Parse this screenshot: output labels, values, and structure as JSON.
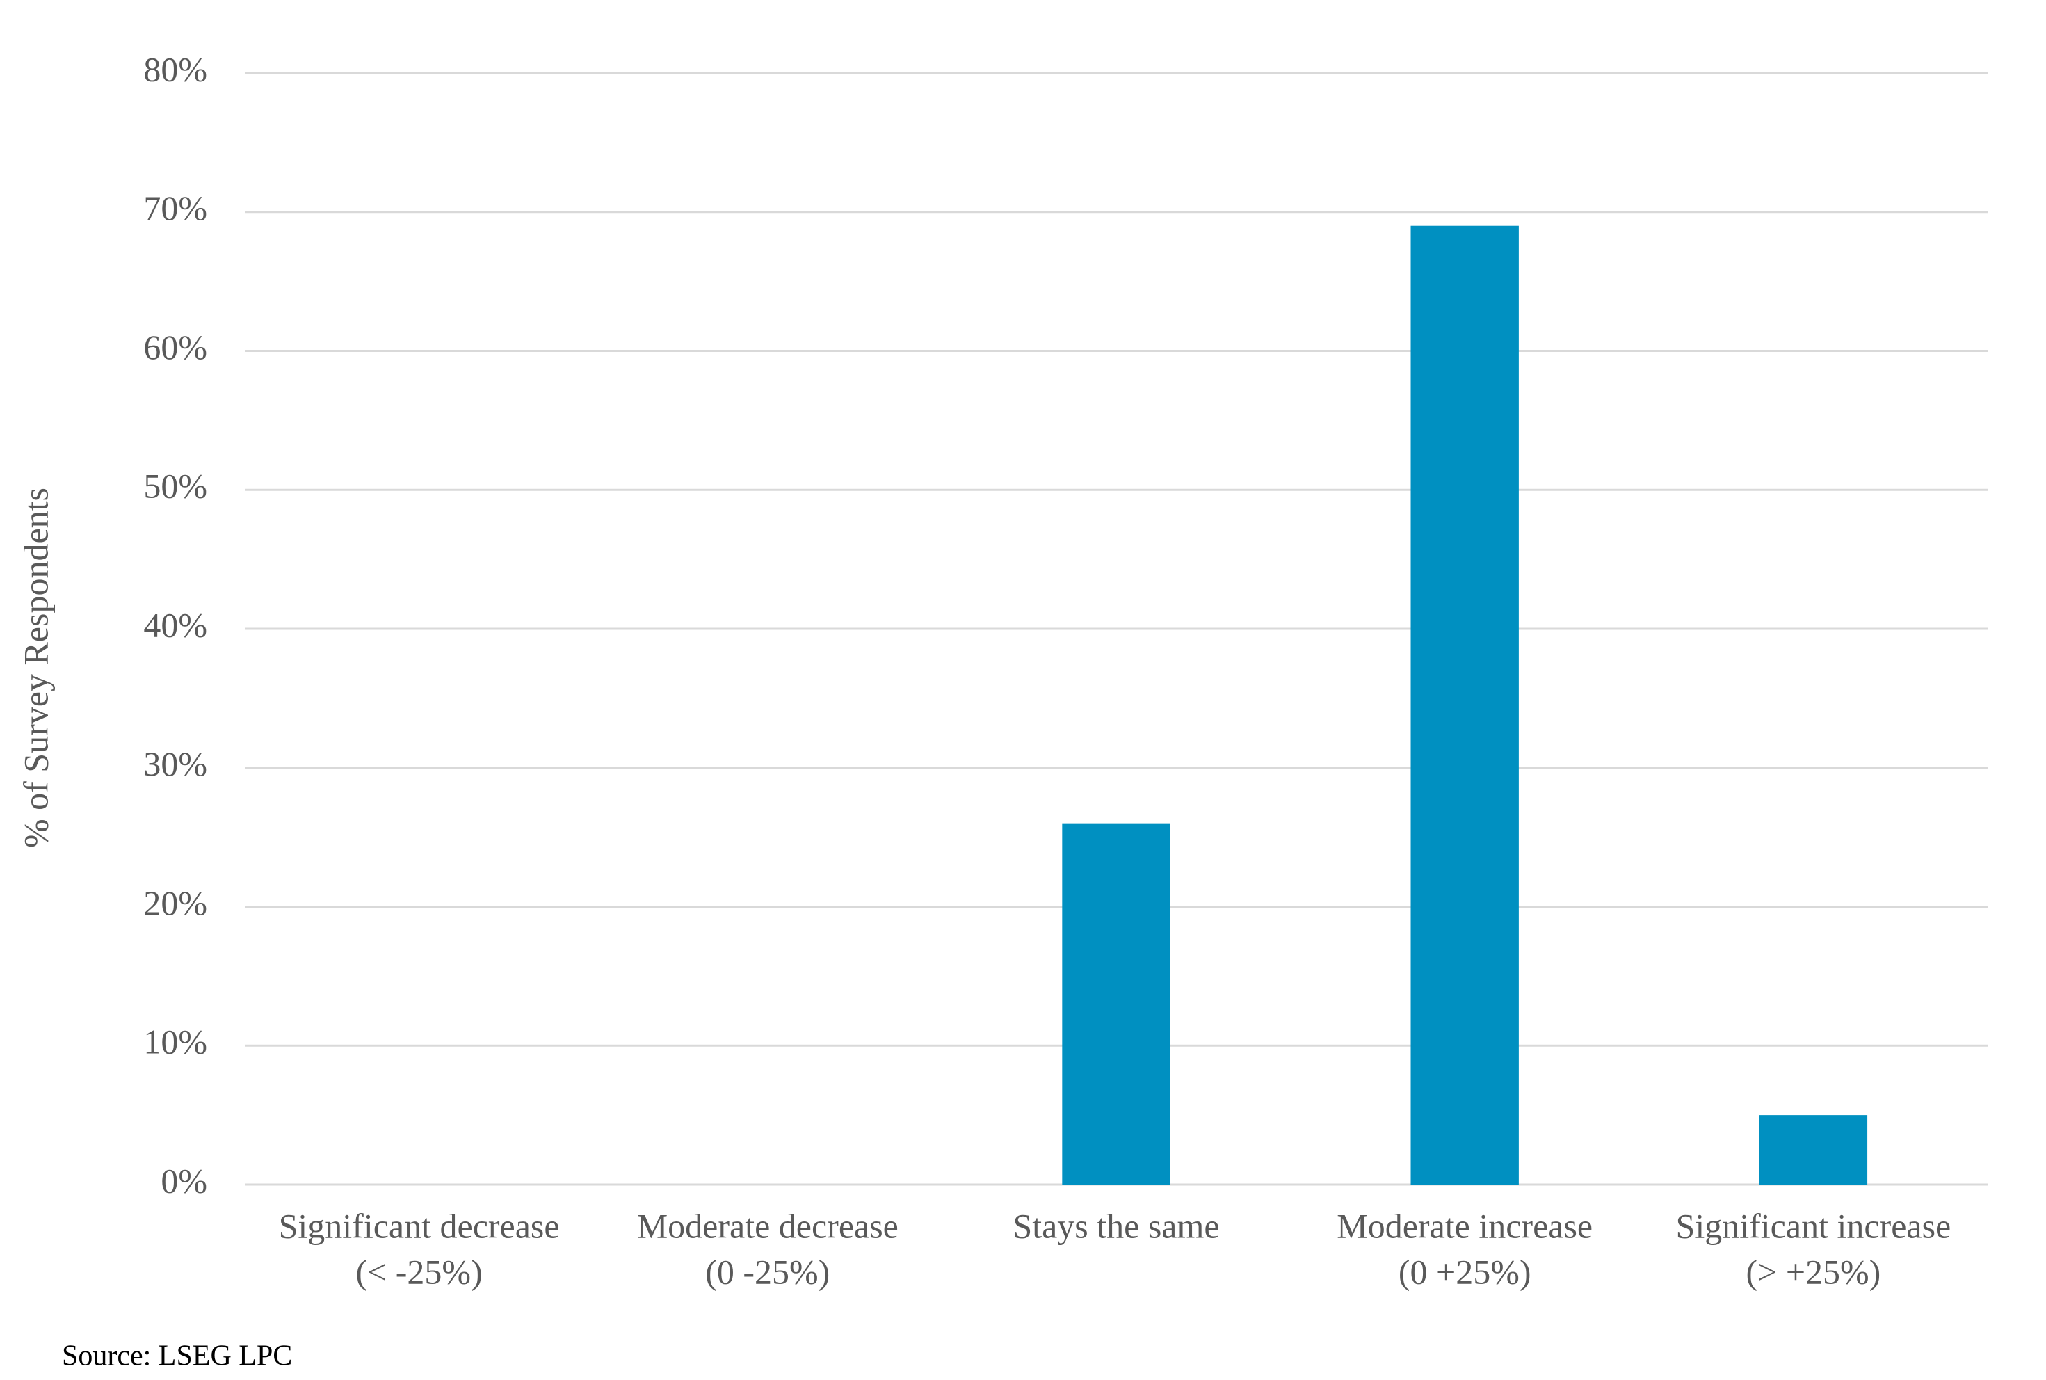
{
  "chart_data": {
    "type": "bar",
    "y_label": "% of Survey Respondents",
    "categories": [
      [
        "Significant decrease",
        "(< -25%)"
      ],
      [
        "Moderate decrease",
        "(0 -25%)"
      ],
      [
        "Stays the same"
      ],
      [
        "Moderate increase",
        "(0 +25%)"
      ],
      [
        "Significant increase",
        "(> +25%)"
      ]
    ],
    "values": [
      0,
      0,
      26,
      69,
      5
    ],
    "color": "#0090c1",
    "ylim": [
      0,
      80
    ],
    "yticks": [
      {
        "value": 0,
        "label": "0%"
      },
      {
        "value": 10,
        "label": "10%"
      },
      {
        "value": 20,
        "label": "20%"
      },
      {
        "value": 30,
        "label": "30%"
      },
      {
        "value": 40,
        "label": "40%"
      },
      {
        "value": 50,
        "label": "50%"
      },
      {
        "value": 60,
        "label": "60%"
      },
      {
        "value": 70,
        "label": "70%"
      },
      {
        "value": 80,
        "label": "80%"
      }
    ],
    "grid": true,
    "source": "Source: LSEG LPC"
  }
}
